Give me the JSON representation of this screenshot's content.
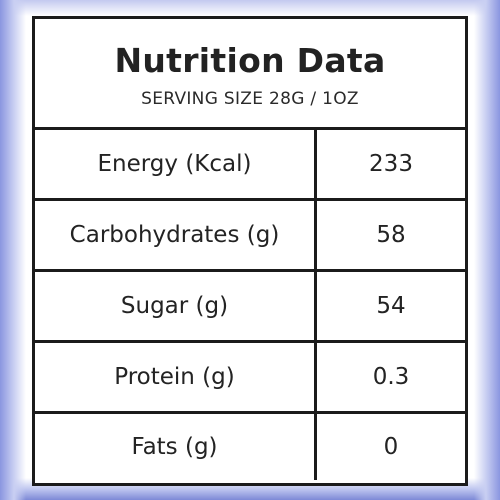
{
  "header": {
    "title": "Nutrition Data",
    "subtitle": "SERVING SIZE 28G / 1OZ"
  },
  "rows": [
    {
      "name": "Energy (Kcal)",
      "value": "233"
    },
    {
      "name": "Carbohydrates (g)",
      "value": "58"
    },
    {
      "name": "Sugar (g)",
      "value": "54"
    },
    {
      "name": "Protein (g)",
      "value": "0.3"
    },
    {
      "name": "Fats (g)",
      "value": "0"
    }
  ],
  "colors": {
    "frame": "#8a96e0",
    "border": "#1b1b1b",
    "text": "#232323"
  }
}
